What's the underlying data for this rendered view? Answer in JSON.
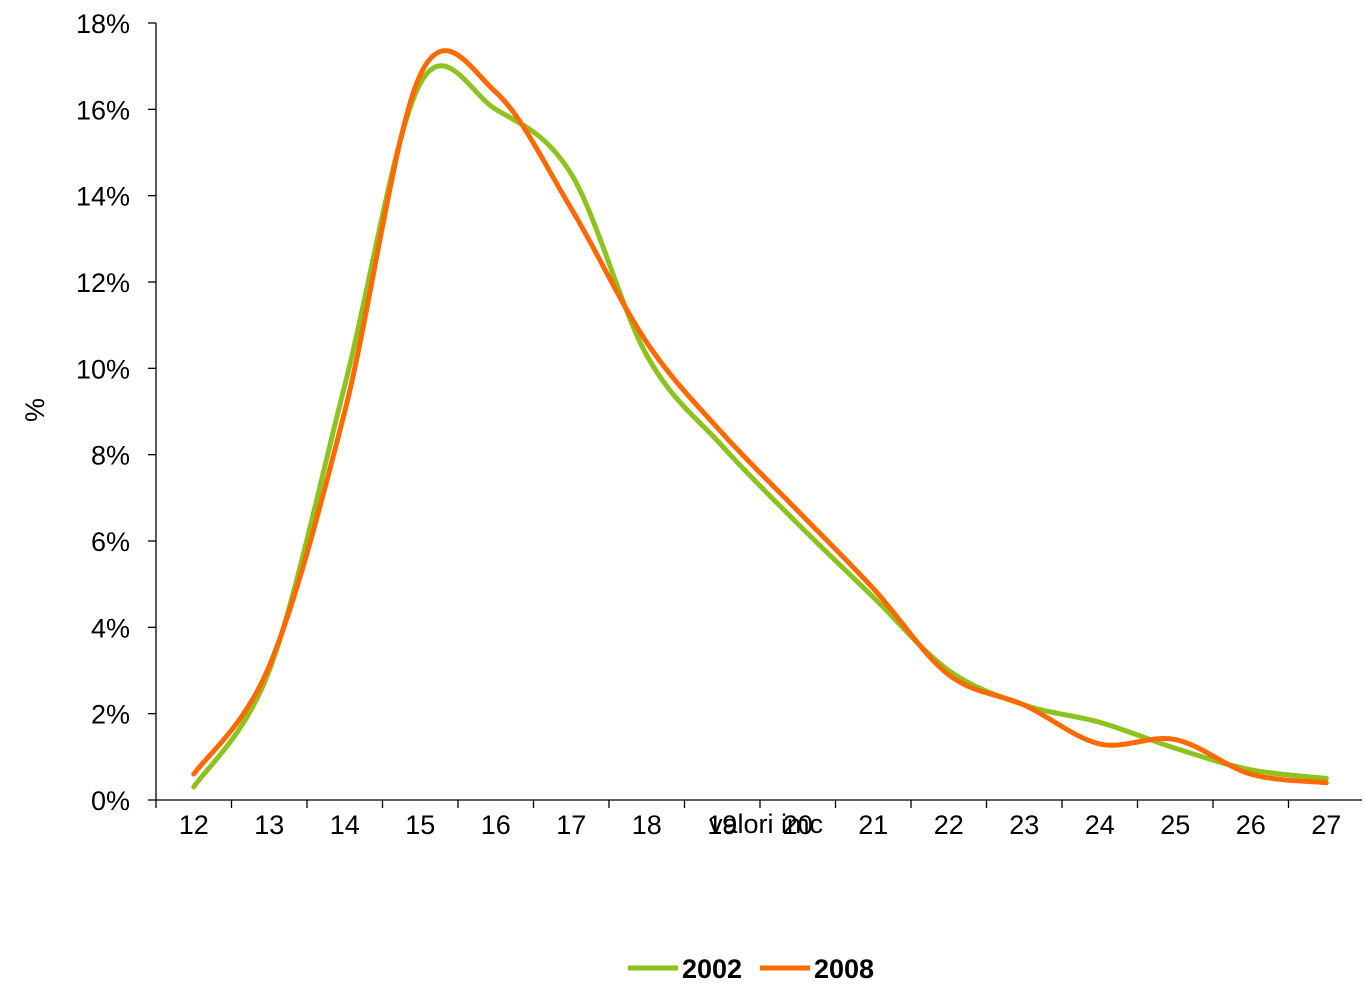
{
  "chart_data": {
    "type": "line",
    "xlabel": "valori imc",
    "ylabel": "%",
    "x": [
      12,
      13,
      14,
      15,
      16,
      17,
      18,
      19,
      20,
      21,
      22,
      23,
      24,
      25,
      26,
      27
    ],
    "ylim": [
      0,
      18
    ],
    "yticks": [
      "0%",
      "2%",
      "4%",
      "6%",
      "8%",
      "10%",
      "12%",
      "14%",
      "16%",
      "18%"
    ],
    "xticks": [
      "12",
      "13",
      "14",
      "15",
      "16",
      "17",
      "18",
      "19",
      "20",
      "21",
      "22",
      "23",
      "24",
      "25",
      "26",
      "27"
    ],
    "grid": false,
    "legend_position": "bottom",
    "series": [
      {
        "name": "2002",
        "color": "#8DC21F",
        "values": [
          0.3,
          3.0,
          9.6,
          16.6,
          16.0,
          14.5,
          10.3,
          8.2,
          6.4,
          4.7,
          3.0,
          2.2,
          1.8,
          1.2,
          0.7,
          0.5
        ]
      },
      {
        "name": "2008",
        "color": "#FF6A00",
        "values": [
          0.6,
          3.1,
          9.0,
          16.8,
          16.4,
          13.7,
          10.6,
          8.5,
          6.7,
          4.9,
          2.9,
          2.2,
          1.3,
          1.4,
          0.6,
          0.4
        ]
      }
    ]
  }
}
